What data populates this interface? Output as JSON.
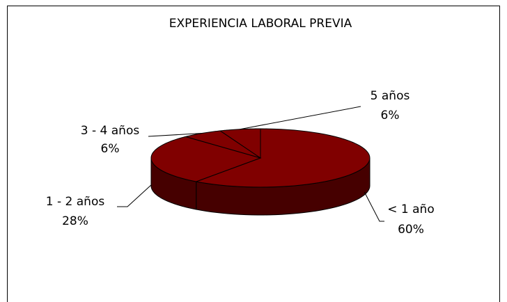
{
  "chart_data": {
    "type": "pie",
    "title": "EXPERIENCIA LABORAL PREVIA",
    "categories": [
      "< 1 año",
      "1 - 2 años",
      "3 - 4 años",
      "5 años"
    ],
    "values": [
      60,
      28,
      6,
      6
    ],
    "value_labels": [
      "60%",
      "28%",
      "6%",
      "6%"
    ],
    "color": "#800000"
  }
}
